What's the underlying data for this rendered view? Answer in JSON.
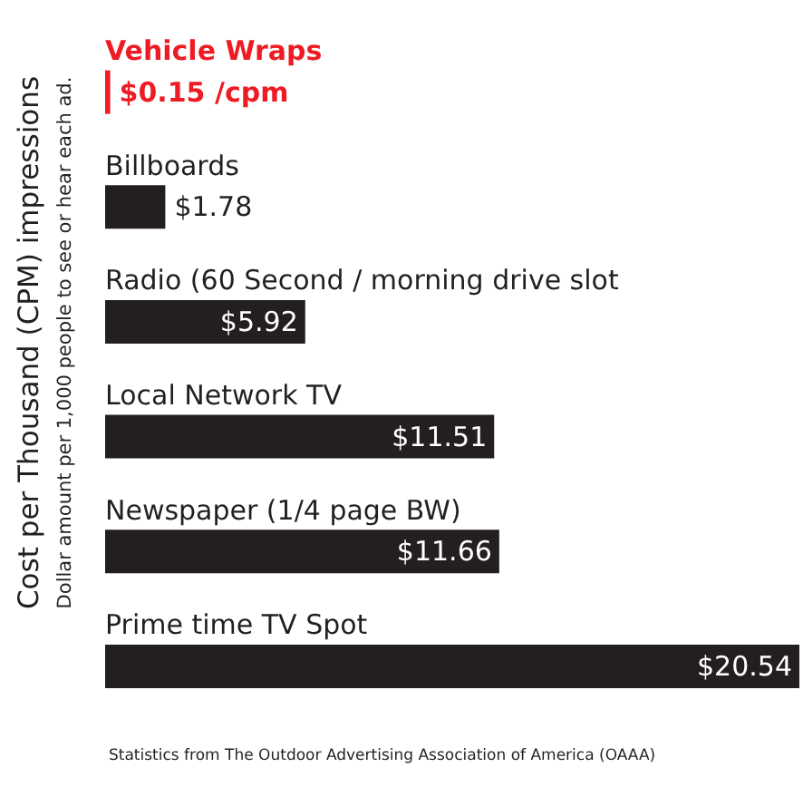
{
  "chart_data": {
    "type": "bar",
    "orientation": "horizontal",
    "ylabel": "Cost per Thousand (CPM) impressions",
    "categories": [
      "Vehicle Wraps",
      "Billboards",
      "Radio (60 Second / morning drive slot",
      "Local Network TV",
      "Newspaper (1/4 page BW)",
      "Prime time TV Spot"
    ],
    "values": [
      0.15,
      1.78,
      5.92,
      11.51,
      11.66,
      20.54
    ],
    "colors": [
      "#ed1c24",
      "#231f20",
      "#231f20",
      "#231f20",
      "#231f20",
      "#231f20"
    ],
    "value_labels": [
      "$0.15 /cpm",
      "$1.78",
      "$5.92",
      "$11.51",
      "$11.66",
      "$20.54"
    ],
    "annotations": [
      "Dollar amount per 1,000 people to see or hear each ad.",
      "Statistics from The Outdoor Advertising Association of America (OAAA)"
    ]
  }
}
